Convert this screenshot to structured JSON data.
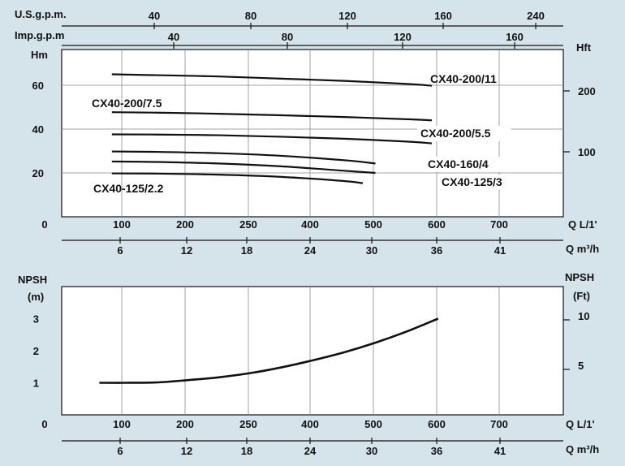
{
  "chart_data": [
    {
      "type": "line",
      "ylabel_left": "Hm",
      "ylabel_right": "Hft",
      "top_axis_1_label": "U.S.g.p.m.",
      "top_axis_1_ticks": [
        "40",
        "80",
        "120",
        "160",
        "240"
      ],
      "top_axis_2_label": "Imp.g.p.m",
      "top_axis_2_ticks": [
        "40",
        "80",
        "120",
        "160"
      ],
      "x_axis_1_label": "Q L/1'",
      "x_axis_1_ticks": [
        "0",
        "100",
        "200",
        "250",
        "400",
        "500",
        "600",
        "700"
      ],
      "x_axis_2_label": "Q m³/h",
      "x_axis_2_ticks": [
        "6",
        "12",
        "18",
        "24",
        "30",
        "36",
        "41"
      ],
      "y_ticks_left": [
        "20",
        "40",
        "60"
      ],
      "y_ticks_right": [
        "100",
        "200"
      ],
      "series": [
        {
          "name": "CX40-200/11",
          "x": [
            0.8,
            1.5,
            2.5,
            3.5,
            4.5,
            5.5,
            5.9
          ],
          "y": [
            65,
            64.6,
            64,
            63,
            62,
            60.6,
            59.8
          ]
        },
        {
          "name": "CX40-200/7.5",
          "x": [
            0.8,
            1.5,
            2.5,
            3.5,
            4.5,
            5.5,
            5.9
          ],
          "y": [
            47.7,
            47.5,
            47,
            46.3,
            45.5,
            44.5,
            44
          ]
        },
        {
          "name": "CX40-200/5.5",
          "x": [
            0.8,
            1.5,
            2.5,
            3.5,
            4.5,
            5.5,
            5.9
          ],
          "y": [
            37.6,
            37.5,
            37.2,
            36.5,
            35.6,
            34.3,
            33.5
          ]
        },
        {
          "name": "CX40-160/4",
          "x": [
            0.8,
            1.5,
            2.5,
            3.5,
            4.5,
            5.0
          ],
          "y": [
            29.8,
            29.6,
            29,
            27.8,
            25.8,
            24.3
          ]
        },
        {
          "name": "CX40-125/3",
          "x": [
            0.8,
            1.5,
            2.5,
            3.5,
            4.5,
            5.0
          ],
          "y": [
            25.2,
            25,
            24.3,
            23,
            21,
            20
          ]
        },
        {
          "name": "CX40-125/2.2",
          "x": [
            0.8,
            1.5,
            2.5,
            3.5,
            4.5,
            4.8
          ],
          "y": [
            19.8,
            19.7,
            19.2,
            18.2,
            16.3,
            15.3
          ]
        }
      ]
    },
    {
      "type": "line",
      "ylabel_left": "NPSH (m)",
      "ylabel_left_1": "NPSH",
      "ylabel_left_2": "(m)",
      "ylabel_right_1": "NPSH",
      "ylabel_right_2": "(Ft)",
      "x_axis_1_label": "Q L/1'",
      "x_axis_1_ticks": [
        "0",
        "100",
        "200",
        "250",
        "400",
        "500",
        "600",
        "700"
      ],
      "x_axis_2_label": "Q m³/h",
      "x_axis_2_ticks": [
        "6",
        "12",
        "18",
        "24",
        "30",
        "36",
        "41"
      ],
      "y_ticks_left": [
        "1",
        "2",
        "3"
      ],
      "y_ticks_right": [
        "5",
        "10"
      ],
      "series": [
        {
          "name": "",
          "x": [
            0.6,
            1.0,
            1.5,
            2.0,
            2.5,
            3.0,
            3.5,
            4.0,
            4.5,
            5.0,
            5.5,
            6.0
          ],
          "y": [
            1.0,
            1.0,
            1.01,
            1.08,
            1.17,
            1.3,
            1.48,
            1.7,
            1.95,
            2.25,
            2.6,
            3.0
          ]
        }
      ]
    }
  ]
}
